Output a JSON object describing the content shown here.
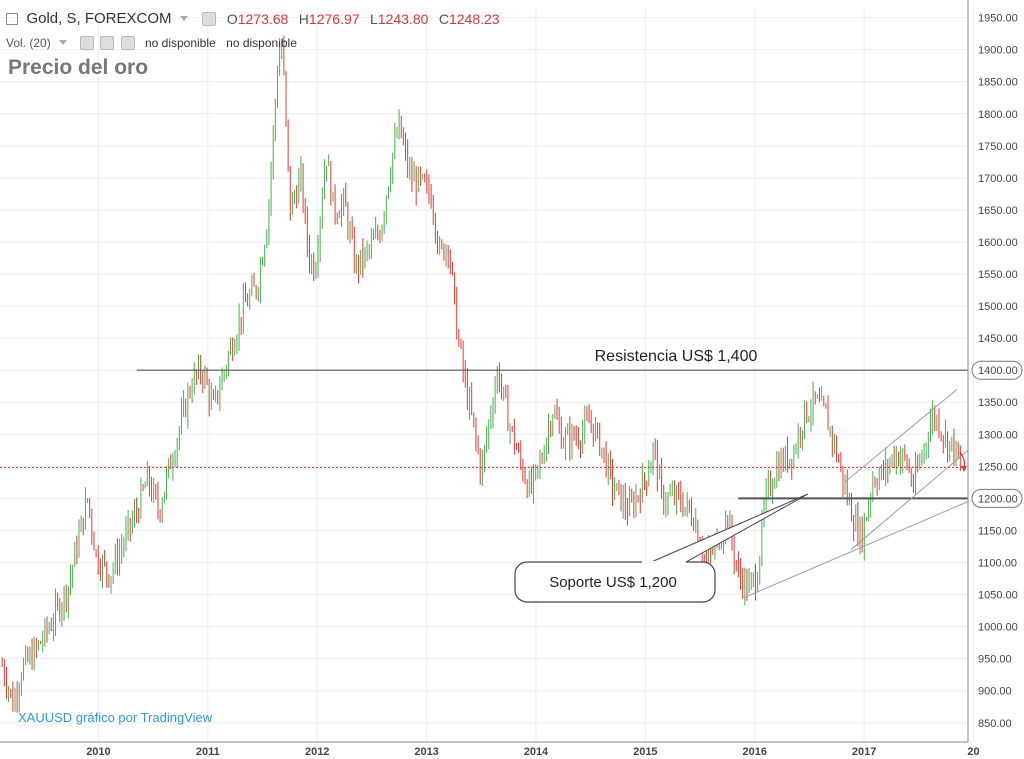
{
  "header": {
    "symbol": "Gold, S, FOREXCOM",
    "open_label": "O",
    "open": "1273.68",
    "high_label": "H",
    "high": "1276.97",
    "low_label": "L",
    "low": "1243.80",
    "close_label": "C",
    "close": "1248.23",
    "volume_label": "Vol. (20)",
    "volume_value_1": "no disponible",
    "volume_value_2": "no disponible"
  },
  "watermark": {
    "text": "XAUUSD gráfico por TradingView"
  },
  "colors": {
    "up": "#4caf50",
    "down": "#e53935",
    "level_line": "#555555",
    "current_price_line": "#e53935",
    "channel": "#9e9e9e",
    "grid": "#eeeeee",
    "watermark": "#2e9ad8"
  },
  "chart_data": {
    "type": "candlestick",
    "title": "Precio del oro",
    "x_tick_labels": [
      "2010",
      "2011",
      "2012",
      "2013",
      "2014",
      "2015",
      "2016",
      "2017",
      "20"
    ],
    "y_tick_labels": [
      "850.00",
      "900.00",
      "950.00",
      "1000.00",
      "1050.00",
      "1100.00",
      "1150.00",
      "1200.00",
      "1250.00",
      "1300.00",
      "1350.00",
      "1400.00",
      "1450.00",
      "1500.00",
      "1550.00",
      "1600.00",
      "1650.00",
      "1700.00",
      "1750.00",
      "1800.00",
      "1850.00",
      "1900.00",
      "1950.00"
    ],
    "ylim": [
      820,
      1965
    ],
    "xlim": [
      2009.1,
      2017.95
    ],
    "grid": true,
    "price_path": [
      [
        2009.12,
        940
      ],
      [
        2009.22,
        880
      ],
      [
        2009.3,
        935
      ],
      [
        2009.42,
        960
      ],
      [
        2009.55,
        1000
      ],
      [
        2009.72,
        1060
      ],
      [
        2009.82,
        1140
      ],
      [
        2009.9,
        1200
      ],
      [
        2009.98,
        1110
      ],
      [
        2010.1,
        1080
      ],
      [
        2010.2,
        1120
      ],
      [
        2010.35,
        1180
      ],
      [
        2010.45,
        1230
      ],
      [
        2010.55,
        1180
      ],
      [
        2010.65,
        1250
      ],
      [
        2010.85,
        1380
      ],
      [
        2010.95,
        1400
      ],
      [
        2011.05,
        1340
      ],
      [
        2011.2,
        1430
      ],
      [
        2011.33,
        1500
      ],
      [
        2011.45,
        1530
      ],
      [
        2011.55,
        1640
      ],
      [
        2011.64,
        1880
      ],
      [
        2011.68,
        1910
      ],
      [
        2011.75,
        1650
      ],
      [
        2011.85,
        1700
      ],
      [
        2011.92,
        1580
      ],
      [
        2011.98,
        1560
      ],
      [
        2012.08,
        1740
      ],
      [
        2012.15,
        1650
      ],
      [
        2012.25,
        1660
      ],
      [
        2012.35,
        1560
      ],
      [
        2012.45,
        1580
      ],
      [
        2012.58,
        1620
      ],
      [
        2012.68,
        1730
      ],
      [
        2012.75,
        1780
      ],
      [
        2012.85,
        1700
      ],
      [
        2012.95,
        1690
      ],
      [
        2013.05,
        1670
      ],
      [
        2013.12,
        1580
      ],
      [
        2013.2,
        1600
      ],
      [
        2013.28,
        1460
      ],
      [
        2013.35,
        1380
      ],
      [
        2013.42,
        1320
      ],
      [
        2013.5,
        1240
      ],
      [
        2013.58,
        1330
      ],
      [
        2013.65,
        1400
      ],
      [
        2013.75,
        1320
      ],
      [
        2013.85,
        1260
      ],
      [
        2013.95,
        1210
      ],
      [
        2014.05,
        1260
      ],
      [
        2014.15,
        1340
      ],
      [
        2014.25,
        1290
      ],
      [
        2014.4,
        1300
      ],
      [
        2014.5,
        1320
      ],
      [
        2014.6,
        1280
      ],
      [
        2014.7,
        1220
      ],
      [
        2014.85,
        1180
      ],
      [
        2015.0,
        1230
      ],
      [
        2015.08,
        1280
      ],
      [
        2015.15,
        1200
      ],
      [
        2015.3,
        1200
      ],
      [
        2015.45,
        1170
      ],
      [
        2015.55,
        1100
      ],
      [
        2015.65,
        1130
      ],
      [
        2015.75,
        1170
      ],
      [
        2015.85,
        1080
      ],
      [
        2015.95,
        1060
      ],
      [
        2016.02,
        1080
      ],
      [
        2016.1,
        1200
      ],
      [
        2016.2,
        1250
      ],
      [
        2016.35,
        1270
      ],
      [
        2016.45,
        1330
      ],
      [
        2016.55,
        1350
      ],
      [
        2016.65,
        1330
      ],
      [
        2016.75,
        1270
      ],
      [
        2016.85,
        1200
      ],
      [
        2016.92,
        1160
      ],
      [
        2016.98,
        1140
      ],
      [
        2017.08,
        1230
      ],
      [
        2017.18,
        1240
      ],
      [
        2017.28,
        1270
      ],
      [
        2017.38,
        1260
      ],
      [
        2017.45,
        1220
      ],
      [
        2017.55,
        1280
      ],
      [
        2017.62,
        1330
      ],
      [
        2017.68,
        1320
      ],
      [
        2017.75,
        1290
      ],
      [
        2017.82,
        1280
      ],
      [
        2017.88,
        1248
      ]
    ],
    "annotations": [
      {
        "type": "hline",
        "name": "resistance",
        "value": 1400,
        "x_start": 2010.35,
        "label": "Resistencia US$ 1,400"
      },
      {
        "type": "hline",
        "name": "support",
        "value": 1200,
        "x_start": 2015.85,
        "label": "Soporte US$ 1,200"
      },
      {
        "type": "hline",
        "name": "last-price",
        "value": 1248.23,
        "style": "dotted"
      },
      {
        "type": "trendline",
        "name": "channel-upper",
        "from": [
          2016.82,
          1225
        ],
        "to": [
          2017.85,
          1370
        ]
      },
      {
        "type": "trendline",
        "name": "channel-middle",
        "from": [
          2016.88,
          1120
        ],
        "to": [
          2017.95,
          1275
        ]
      },
      {
        "type": "trendline",
        "name": "channel-lower",
        "from": [
          2015.9,
          1045
        ],
        "to": [
          2017.95,
          1195
        ]
      }
    ],
    "highlighted_axis_labels": [
      "1400.00",
      "1200.00"
    ]
  }
}
